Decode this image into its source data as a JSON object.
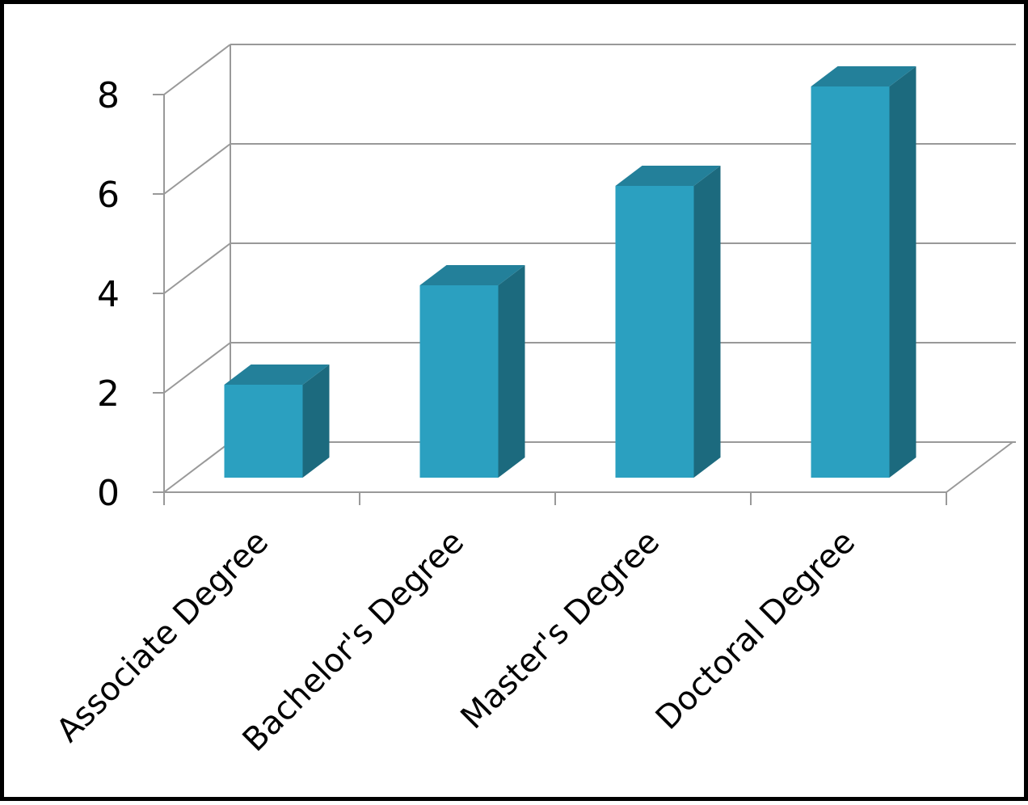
{
  "chart_data": {
    "type": "bar",
    "style": "3d-clustered-column",
    "categories": [
      "Associate Degree",
      "Bachelor's Degree",
      "Master's Degree",
      "Doctoral Degree"
    ],
    "values": [
      2,
      4,
      6,
      8
    ],
    "title": "",
    "xlabel": "",
    "ylabel": "",
    "ylim": [
      0,
      8
    ],
    "yticks": [
      0,
      2,
      4,
      6,
      8
    ],
    "grid": true,
    "legend": "none",
    "colors": {
      "bar_front": "#2ba0c0",
      "bar_side": "#1c6a7e",
      "bar_top": "#23809a",
      "grid": "#999999",
      "frame": "#000000"
    }
  }
}
